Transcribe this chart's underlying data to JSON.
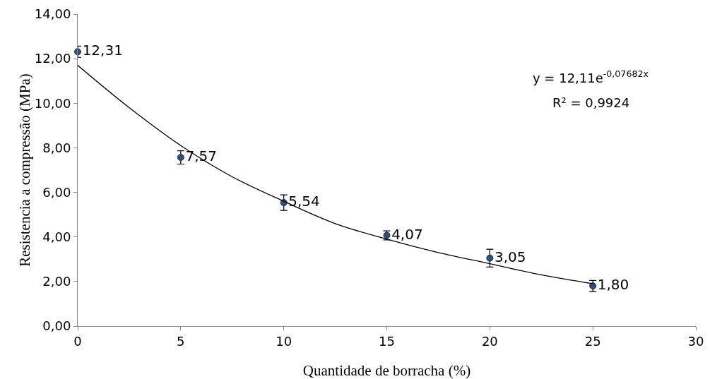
{
  "chart_data": {
    "type": "scatter",
    "xlabel": "Quantidade de borracha (%)",
    "ylabel": "Resistencia a compressão (MPa)",
    "annotations": [
      "y = 12,11e$^{-0,07682x}$",
      "R² = 0,9924"
    ],
    "x": [
      0,
      5,
      10,
      15,
      20,
      25
    ],
    "series": [
      {
        "color": "#2f4f7f",
        "values": [
          12.31,
          7.57,
          5.54,
          4.07,
          3.05,
          1.8
        ],
        "value_labels": [
          "12,31",
          "7,57",
          "5,54",
          "4,07",
          "3,05",
          "1,80"
        ],
        "errors": [
          0.25,
          0.3,
          0.35,
          0.2,
          0.4,
          0.25
        ],
        "marker": "circle"
      },
      {
        "type": "line",
        "color": "#000000",
        "x": [
          0,
          2.5,
          5,
          7.5,
          10,
          12.5,
          15,
          17.5,
          20,
          22.5,
          25
        ],
        "values": [
          11.7,
          9.8,
          8.1,
          6.7,
          5.6,
          4.6,
          3.9,
          3.3,
          2.8,
          2.3,
          1.9
        ],
        "marker": "none",
        "line_style": "solid"
      }
    ],
    "xlim": [
      0,
      30
    ],
    "xticks": [
      0,
      5,
      10,
      15,
      20,
      25,
      30
    ],
    "ylim": [
      0,
      14
    ],
    "yticks": [
      {
        "value": 0,
        "label": "0,00"
      },
      {
        "value": 2,
        "label": "2,00"
      },
      {
        "value": 4,
        "label": "4,00"
      },
      {
        "value": 6,
        "label": "6,00"
      },
      {
        "value": 8,
        "label": "8,00"
      },
      {
        "value": 10,
        "label": "10,00"
      },
      {
        "value": 12,
        "label": "12,00"
      },
      {
        "value": 14,
        "label": "14,00"
      }
    ],
    "grid": false
  }
}
